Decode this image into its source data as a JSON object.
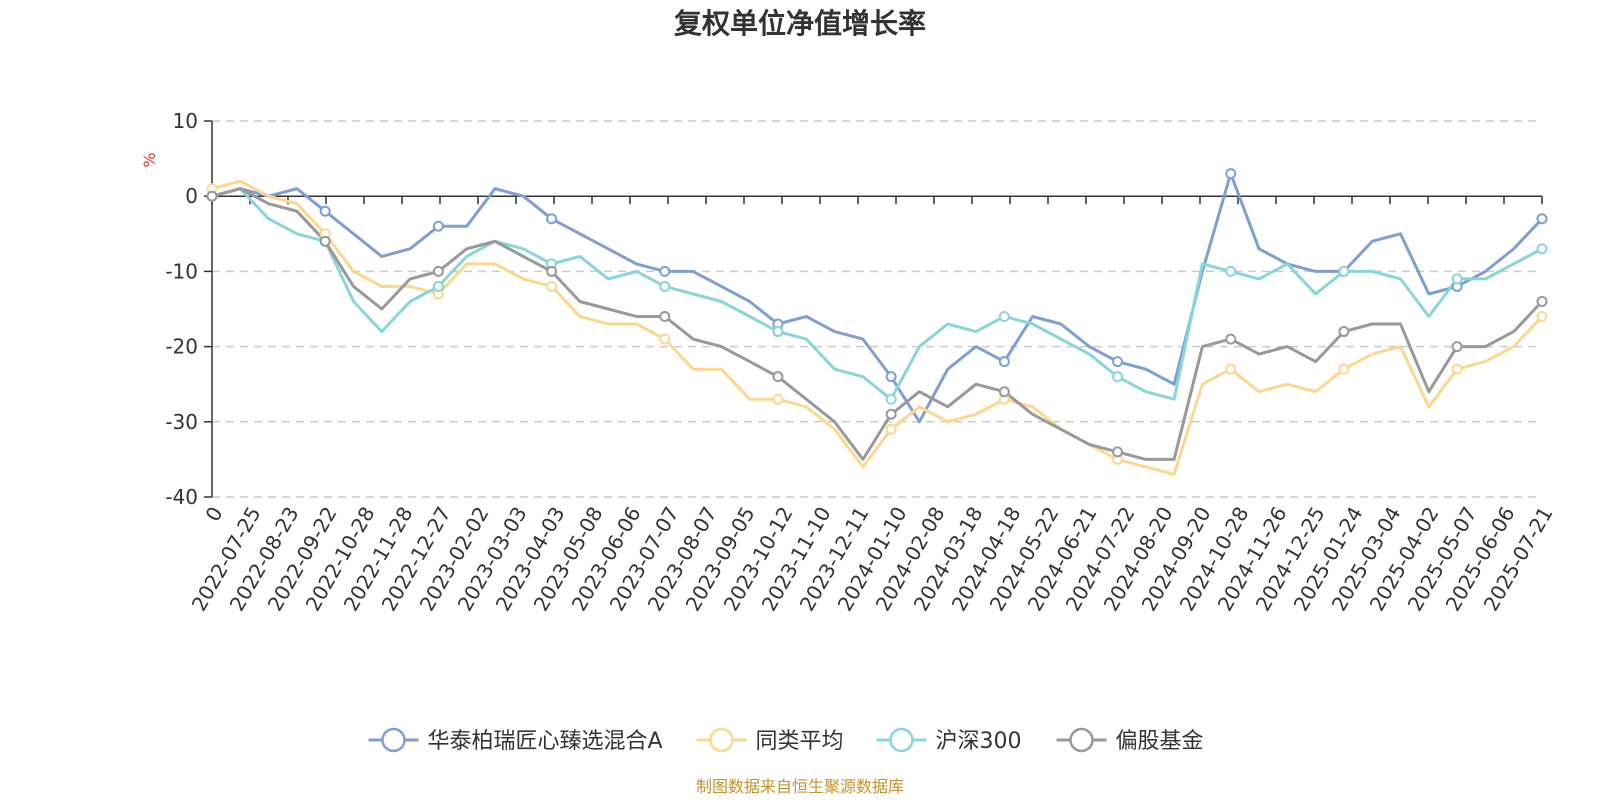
{
  "chart_data": {
    "type": "line",
    "title": "复权单位净值增长率",
    "ylabel": "%",
    "ylim": [
      -40,
      10
    ],
    "yticks": [
      "10",
      "0",
      "-10",
      "-20",
      "-30",
      "-40"
    ],
    "x_tick_labels": [
      "0",
      "2022-07-25",
      "2022-08-23",
      "2022-09-22",
      "2022-10-28",
      "2022-11-28",
      "2022-12-27",
      "2023-02-02",
      "2023-03-03",
      "2023-04-03",
      "2023-05-08",
      "2023-06-06",
      "2023-07-07",
      "2023-08-07",
      "2023-09-05",
      "2023-10-12",
      "2023-11-10",
      "2023-12-11",
      "2024-01-10",
      "2024-02-08",
      "2024-03-18",
      "2024-04-18",
      "2024-05-22",
      "2024-06-21",
      "2024-07-22",
      "2024-08-20",
      "2024-09-20",
      "2024-10-28",
      "2024-11-26",
      "2024-12-25",
      "2025-01-24",
      "2025-03-04",
      "2025-04-02",
      "2025-05-07",
      "2025-06-06",
      "2025-07-21"
    ],
    "grid": "y-dashed",
    "legend_position": "bottom",
    "source": "制图数据来自恒生聚源数据库",
    "series": [
      {
        "name": "华泰柏瑞匠心臻选混合A",
        "color": "#7f9fd4",
        "values": [
          0,
          1,
          0,
          1,
          -2,
          -5,
          -8,
          -7,
          -4,
          -4,
          1,
          0,
          -3,
          -5,
          -7,
          -9,
          -10,
          -10,
          -12,
          -14,
          -17,
          -16,
          -18,
          -19,
          -24,
          -30,
          -23,
          -20,
          -22,
          -16,
          -17,
          -20,
          -22,
          -23,
          -25,
          -10,
          3,
          -7,
          -9,
          -10,
          -10,
          -6,
          -5,
          -13,
          -12,
          -10,
          -7,
          -3
        ]
      },
      {
        "name": "同类平均",
        "color": "#fcd78f",
        "values": [
          1,
          2,
          0,
          -1,
          -5,
          -10,
          -12,
          -12,
          -13,
          -9,
          -9,
          -11,
          -12,
          -16,
          -17,
          -17,
          -19,
          -23,
          -23,
          -27,
          -27,
          -28,
          -31,
          -36,
          -31,
          -28,
          -30,
          -29,
          -27,
          -28,
          -31,
          -33,
          -35,
          -36,
          -37,
          -25,
          -23,
          -26,
          -25,
          -26,
          -23,
          -21,
          -20,
          -28,
          -23,
          -22,
          -20,
          -16
        ]
      },
      {
        "name": "沪深300",
        "color": "#88d5da",
        "values": [
          0,
          1,
          -3,
          -5,
          -6,
          -14,
          -18,
          -14,
          -12,
          -8,
          -6,
          -7,
          -9,
          -8,
          -11,
          -10,
          -12,
          -13,
          -14,
          -16,
          -18,
          -19,
          -23,
          -24,
          -27,
          -20,
          -17,
          -18,
          -16,
          -17,
          -19,
          -21,
          -24,
          -26,
          -27,
          -9,
          -10,
          -11,
          -9,
          -13,
          -10,
          -10,
          -11,
          -16,
          -11,
          -11,
          -9,
          -7
        ]
      },
      {
        "name": "偏股基金",
        "color": "#999999",
        "values": [
          0,
          1,
          -1,
          -2,
          -6,
          -12,
          -15,
          -11,
          -10,
          -7,
          -6,
          -8,
          -10,
          -14,
          -15,
          -16,
          -16,
          -19,
          -20,
          -22,
          -24,
          -27,
          -30,
          -35,
          -29,
          -26,
          -28,
          -25,
          -26,
          -29,
          -31,
          -33,
          -34,
          -35,
          -35,
          -20,
          -19,
          -21,
          -20,
          -22,
          -18,
          -17,
          -17,
          -26,
          -20,
          -20,
          -18,
          -14
        ]
      }
    ]
  }
}
